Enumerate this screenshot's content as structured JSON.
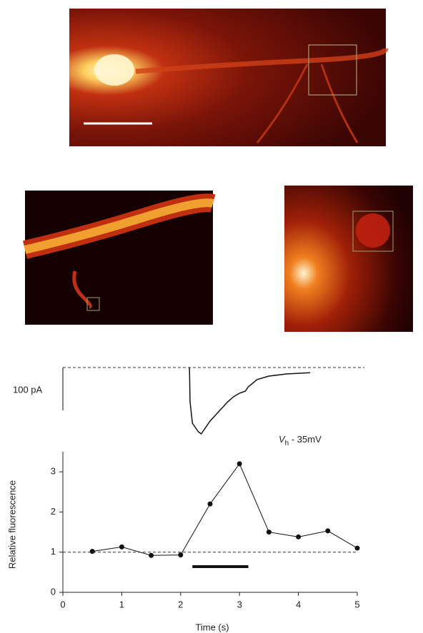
{
  "chart_data": [
    {
      "type": "trace",
      "x": [
        2.15,
        2.16,
        2.2,
        2.3,
        2.35,
        2.4,
        2.5,
        2.6,
        2.7,
        2.8,
        2.9,
        3.0,
        3.1,
        3.15,
        3.3,
        3.5,
        3.8,
        4.2
      ],
      "values": [
        0,
        -80,
        -130,
        -150,
        -155,
        -145,
        -125,
        -110,
        -95,
        -80,
        -68,
        -60,
        -55,
        -45,
        -28,
        -20,
        -15,
        -12
      ],
      "xlim": [
        0,
        5
      ],
      "baseline": 0,
      "scale_bar": {
        "value": 100,
        "label": "100 pA"
      },
      "annotation": {
        "var": "V",
        "sub": "h",
        "rest": " - 35mV"
      },
      "color": "#111"
    },
    {
      "type": "scatter-line",
      "x": [
        0.5,
        1,
        1.5,
        2,
        2.5,
        3,
        3.5,
        4,
        4.5,
        5
      ],
      "values": [
        1.02,
        1.13,
        0.92,
        0.93,
        2.2,
        3.2,
        1.5,
        1.38,
        1.53,
        1.1
      ],
      "xlim": [
        0,
        5
      ],
      "ylim": [
        0,
        3.5
      ],
      "xticks": [
        0,
        1,
        2,
        3,
        4,
        5
      ],
      "yticks": [
        0,
        1,
        2,
        3
      ],
      "x_label": "Time (s)",
      "y_label": "Relative fluorescence",
      "reference_line": 1,
      "stimulus": [
        2.2,
        3.15
      ],
      "color": "#111"
    }
  ]
}
